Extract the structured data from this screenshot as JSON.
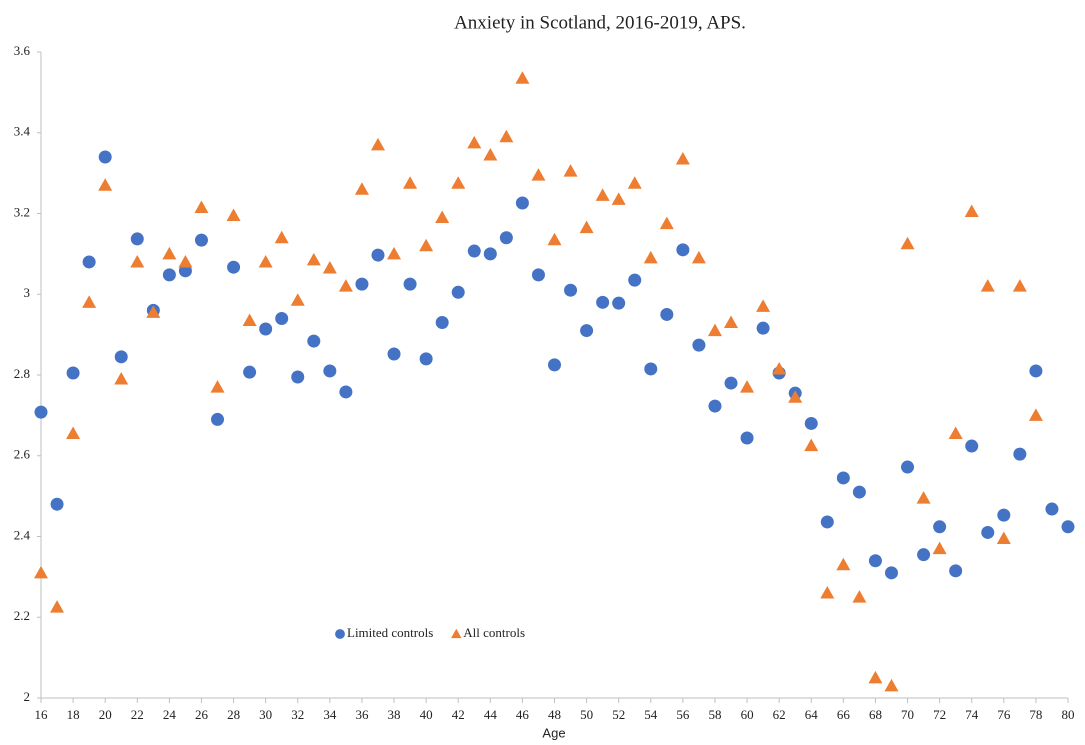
{
  "chart_data": {
    "type": "scatter",
    "title": "Anxiety in Scotland, 2016-2019, APS.",
    "x_label": "Age",
    "x": [
      16,
      17,
      18,
      19,
      20,
      21,
      22,
      23,
      24,
      25,
      26,
      27,
      28,
      29,
      30,
      31,
      32,
      33,
      34,
      35,
      36,
      37,
      38,
      39,
      40,
      41,
      42,
      43,
      44,
      45,
      46,
      47,
      48,
      49,
      50,
      51,
      52,
      53,
      54,
      55,
      56,
      57,
      58,
      59,
      60,
      61,
      62,
      63,
      64,
      65,
      66,
      67,
      68,
      69,
      70,
      71,
      72,
      73,
      74,
      75,
      76,
      77,
      78,
      79,
      80
    ],
    "series": [
      {
        "name": "Limited controls",
        "color": "#4472c4",
        "marker": "circle",
        "values": [
          2.708,
          2.48,
          2.805,
          3.08,
          3.34,
          2.845,
          3.137,
          2.96,
          3.048,
          3.058,
          3.134,
          2.69,
          3.067,
          2.807,
          2.914,
          2.94,
          2.795,
          2.884,
          2.81,
          2.758,
          3.025,
          3.097,
          2.852,
          3.025,
          2.84,
          2.93,
          3.005,
          3.107,
          3.1,
          3.14,
          3.226,
          3.048,
          2.825,
          3.01,
          2.91,
          2.98,
          2.978,
          3.035,
          2.815,
          2.95,
          3.11,
          2.874,
          2.723,
          2.78,
          2.644,
          2.916,
          2.805,
          2.755,
          2.68,
          2.436,
          2.545,
          2.51,
          2.34,
          2.31,
          2.572,
          2.355,
          2.424,
          2.315,
          2.624,
          2.41,
          2.453,
          2.604,
          2.81,
          2.468,
          2.424
        ]
      },
      {
        "name": "All controls",
        "color": "#ed7d31",
        "marker": "triangle",
        "values": [
          2.31,
          2.225,
          2.655,
          2.98,
          3.27,
          2.79,
          3.08,
          2.955,
          3.1,
          3.08,
          3.215,
          2.77,
          3.195,
          2.935,
          3.08,
          3.14,
          2.985,
          3.085,
          3.065,
          3.02,
          3.26,
          3.37,
          3.1,
          3.275,
          3.12,
          3.19,
          3.275,
          3.375,
          3.345,
          3.39,
          3.535,
          3.295,
          3.135,
          3.305,
          3.165,
          3.245,
          3.235,
          3.275,
          3.09,
          3.175,
          3.335,
          3.09,
          2.91,
          2.93,
          2.77,
          2.97,
          2.815,
          2.745,
          2.625,
          2.26,
          2.33,
          2.25,
          2.05,
          2.03,
          3.125,
          2.495,
          2.37,
          2.655,
          3.205,
          3.02,
          2.395,
          3.02,
          2.7,
          null,
          null
        ]
      }
    ],
    "xlim": [
      16,
      80
    ],
    "xticks": [
      16,
      18,
      20,
      22,
      24,
      26,
      28,
      30,
      32,
      34,
      36,
      38,
      40,
      42,
      44,
      46,
      48,
      50,
      52,
      54,
      56,
      58,
      60,
      62,
      64,
      66,
      68,
      70,
      72,
      74,
      76,
      78,
      80
    ],
    "ylim": [
      2,
      3.6
    ],
    "yticks": [
      2,
      2.2,
      2.4,
      2.6,
      2.8,
      3,
      3.2,
      3.4,
      3.6
    ],
    "grid": false,
    "legend": "bottom"
  }
}
